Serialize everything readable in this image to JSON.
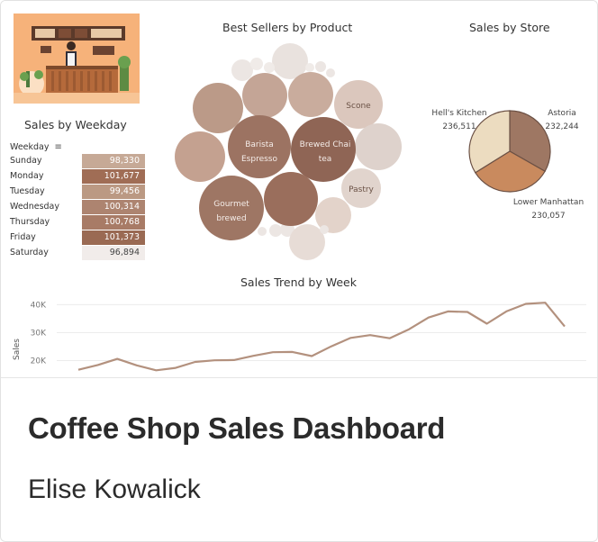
{
  "card": {
    "title": "Coffee Shop Sales Dashboard",
    "author": "Elise Kowalick"
  },
  "dashboard": {
    "weekday": {
      "title": "Sales by Weekday",
      "column_header": "Weekday",
      "rows": [
        {
          "day": "Sunday",
          "value": "98,330",
          "color": "#c6a996"
        },
        {
          "day": "Monday",
          "value": "101,677",
          "color": "#a06d55"
        },
        {
          "day": "Tuesday",
          "value": "99,456",
          "color": "#bb9983"
        },
        {
          "day": "Wednesday",
          "value": "100,314",
          "color": "#ad8470"
        },
        {
          "day": "Thursday",
          "value": "100,768",
          "color": "#a87b66"
        },
        {
          "day": "Friday",
          "value": "101,373",
          "color": "#9a6a53"
        },
        {
          "day": "Saturday",
          "value": "96,894",
          "color": "#f1ecea"
        }
      ]
    },
    "products": {
      "title": "Best Sellers by Product",
      "labeled": [
        {
          "label": "Barista Espresso"
        },
        {
          "label": "Brewed Chai tea"
        },
        {
          "label": "Gourmet brewed"
        },
        {
          "label": "Scone"
        },
        {
          "label": "Pastry"
        }
      ]
    },
    "stores": {
      "title": "Sales by Store",
      "slices": [
        {
          "name": "Hell's Kitchen",
          "value": "236,511",
          "color": "#ecdcc0"
        },
        {
          "name": "Astoria",
          "value": "232,244",
          "color": "#9e7763"
        },
        {
          "name": "Lower Manhattan",
          "value": "230,057",
          "color": "#c98a5e"
        }
      ]
    },
    "trend": {
      "title": "Sales Trend by Week",
      "y_label": "Sales",
      "y_ticks": [
        "40K",
        "30K",
        "20K"
      ]
    }
  },
  "chart_data": [
    {
      "type": "line",
      "title": "Sales Trend by Week",
      "ylabel": "Sales",
      "ylim": [
        15000,
        44000
      ],
      "y_ticks": [
        20000,
        30000,
        40000
      ],
      "series": [
        {
          "values": [
            16700,
            18400,
            20600,
            18300,
            16500,
            17400,
            19500,
            20100,
            20200,
            21700,
            23000,
            23100,
            21600,
            25100,
            28100,
            29100,
            28000,
            31200,
            35400,
            37600,
            37400,
            33200,
            37600,
            40300,
            40700,
            32200
          ]
        }
      ]
    },
    {
      "type": "pie",
      "title": "Sales by Store",
      "categories": [
        "Hell's Kitchen",
        "Astoria",
        "Lower Manhattan"
      ],
      "values": [
        236511,
        232244,
        230057
      ]
    },
    {
      "type": "table",
      "title": "Sales by Weekday",
      "categories": [
        "Sunday",
        "Monday",
        "Tuesday",
        "Wednesday",
        "Thursday",
        "Friday",
        "Saturday"
      ],
      "values": [
        98330,
        101677,
        99456,
        100314,
        100768,
        101373,
        96894
      ]
    }
  ]
}
